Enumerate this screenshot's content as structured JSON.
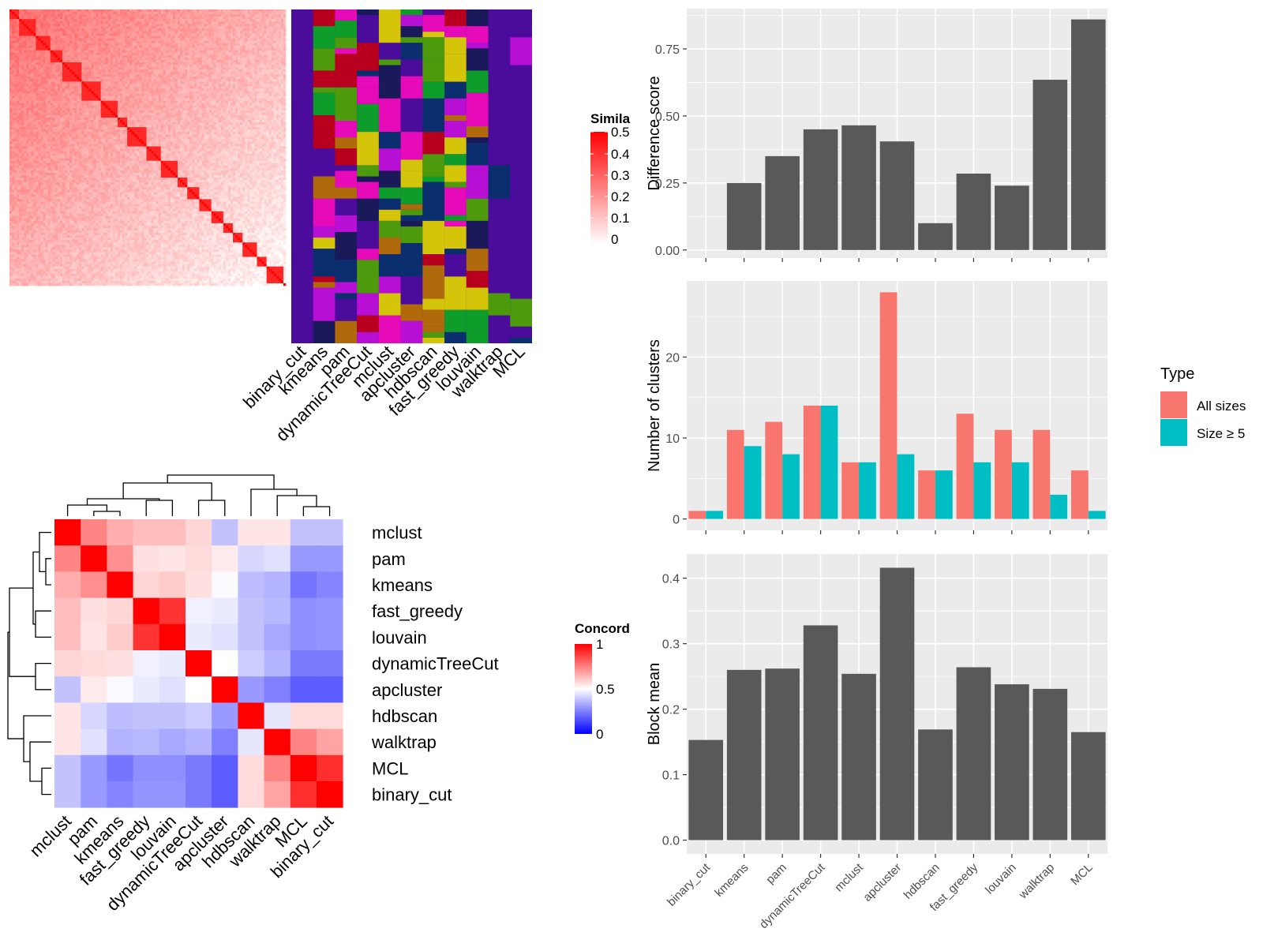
{
  "heatmap_similarity": {
    "legend_title": "Simila",
    "legend_ticks": [
      "0.5",
      "0.4",
      "0.3",
      "0.2",
      "0.1",
      "0"
    ],
    "method_labels": [
      "binary_cut",
      "kmeans",
      "pam",
      "dynamicTreeCut",
      "mclust",
      "apcluster",
      "hdbscan",
      "fast_greedy",
      "louvain",
      "walktrap",
      "MCL"
    ]
  },
  "heatmap_concordance": {
    "legend_title": "Concord",
    "legend_ticks": [
      "1",
      "0.5",
      "0"
    ],
    "row_labels": [
      "mclust",
      "pam",
      "kmeans",
      "fast_greedy",
      "louvain",
      "dynamicTreeCut",
      "apcluster",
      "hdbscan",
      "walktrap",
      "MCL",
      "binary_cut"
    ],
    "col_labels": [
      "mclust",
      "pam",
      "kmeans",
      "fast_greedy",
      "louvain",
      "dynamicTreeCut",
      "apcluster",
      "hdbscan",
      "walktrap",
      "MCL",
      "binary_cut"
    ]
  },
  "colors": {
    "bar": "#595959",
    "panel_bg": "#ebebeb",
    "all_sizes": "#f8766d",
    "size_ge_5": "#00bfc4",
    "heat_red": "#ff0000",
    "heat_blue": "#0000ff",
    "cluster_palette": [
      "#4b0c9c",
      "#d4c40a",
      "#0e9c2a",
      "#b8001e",
      "#e60ab9",
      "#4d9a0c",
      "#b06a0c",
      "#0a2e6e",
      "#1a1a5a",
      "#b70fd4"
    ]
  },
  "chart_data": [
    {
      "type": "bar",
      "categories": [
        "binary_cut",
        "kmeans",
        "pam",
        "dynamicTreeCut",
        "mclust",
        "apcluster",
        "hdbscan",
        "fast_greedy",
        "louvain",
        "walktrap",
        "MCL"
      ],
      "values": [
        0.0,
        0.25,
        0.35,
        0.45,
        0.465,
        0.405,
        0.1,
        0.285,
        0.24,
        0.635,
        0.86
      ],
      "ylabel": "Difference score",
      "ylim": [
        -0.03,
        0.9
      ],
      "yticks": [
        "0.00",
        "0.25",
        "0.50",
        "0.75"
      ],
      "grid": true
    },
    {
      "type": "bar",
      "categories": [
        "binary_cut",
        "kmeans",
        "pam",
        "dynamicTreeCut",
        "mclust",
        "apcluster",
        "hdbscan",
        "fast_greedy",
        "louvain",
        "walktrap",
        "MCL"
      ],
      "series": [
        {
          "name": "All sizes",
          "values": [
            1,
            11,
            12,
            14,
            7,
            28,
            6,
            13,
            11,
            11,
            6
          ]
        },
        {
          "name": "Size ≥ 5",
          "values": [
            1,
            9,
            8,
            14,
            7,
            8,
            6,
            7,
            7,
            3,
            1
          ]
        }
      ],
      "ylabel": "Number of clusters",
      "ylim": [
        -1.4,
        29.4
      ],
      "yticks": [
        "0",
        "10",
        "20"
      ],
      "legend_title": "Type",
      "legend_position": "right",
      "grid": true
    },
    {
      "type": "bar",
      "categories": [
        "binary_cut",
        "kmeans",
        "pam",
        "dynamicTreeCut",
        "mclust",
        "apcluster",
        "hdbscan",
        "fast_greedy",
        "louvain",
        "walktrap",
        "MCL"
      ],
      "values": [
        0.153,
        0.26,
        0.262,
        0.328,
        0.254,
        0.416,
        0.169,
        0.264,
        0.238,
        0.231,
        0.165
      ],
      "ylabel": "Block mean",
      "ylim": [
        -0.021,
        0.437
      ],
      "yticks": [
        "0.0",
        "0.1",
        "0.2",
        "0.3",
        "0.4"
      ],
      "grid": true
    },
    {
      "type": "heatmap",
      "labels": [
        "mclust",
        "pam",
        "kmeans",
        "fast_greedy",
        "louvain",
        "dynamicTreeCut",
        "apcluster",
        "hdbscan",
        "walktrap",
        "MCL",
        "binary_cut"
      ],
      "matrix": [
        [
          1.0,
          0.74,
          0.66,
          0.63,
          0.63,
          0.58,
          0.38,
          0.55,
          0.55,
          0.38,
          0.38
        ],
        [
          0.74,
          1.0,
          0.72,
          0.56,
          0.55,
          0.57,
          0.54,
          0.42,
          0.44,
          0.3,
          0.3
        ],
        [
          0.66,
          0.72,
          1.0,
          0.58,
          0.6,
          0.56,
          0.49,
          0.37,
          0.35,
          0.23,
          0.26
        ],
        [
          0.63,
          0.56,
          0.58,
          1.0,
          0.9,
          0.47,
          0.46,
          0.38,
          0.36,
          0.28,
          0.29
        ],
        [
          0.63,
          0.55,
          0.6,
          0.9,
          1.0,
          0.46,
          0.44,
          0.38,
          0.33,
          0.28,
          0.29
        ],
        [
          0.58,
          0.57,
          0.56,
          0.47,
          0.46,
          1.0,
          0.5,
          0.4,
          0.35,
          0.24,
          0.24
        ],
        [
          0.38,
          0.54,
          0.49,
          0.46,
          0.44,
          0.5,
          1.0,
          0.3,
          0.25,
          0.18,
          0.18
        ],
        [
          0.55,
          0.42,
          0.37,
          0.38,
          0.38,
          0.4,
          0.3,
          1.0,
          0.45,
          0.57,
          0.57
        ],
        [
          0.55,
          0.44,
          0.35,
          0.36,
          0.33,
          0.35,
          0.25,
          0.45,
          1.0,
          0.74,
          0.68
        ],
        [
          0.38,
          0.3,
          0.23,
          0.28,
          0.28,
          0.24,
          0.18,
          0.57,
          0.74,
          1.0,
          0.91
        ],
        [
          0.38,
          0.3,
          0.26,
          0.29,
          0.29,
          0.24,
          0.18,
          0.57,
          0.68,
          0.91,
          1.0
        ]
      ],
      "legend_title": "Concord",
      "range": [
        0,
        1
      ]
    }
  ]
}
